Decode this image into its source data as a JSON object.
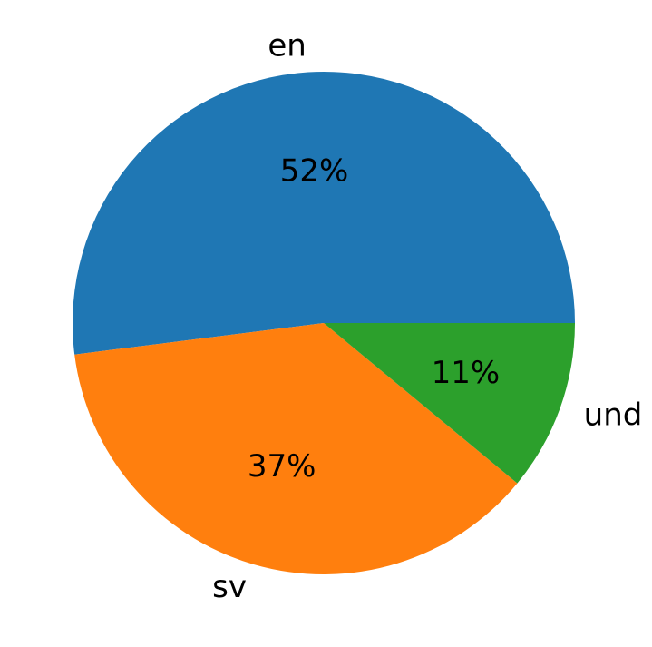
{
  "chart_data": {
    "type": "pie",
    "title": "",
    "categories": [
      "en",
      "sv",
      "und"
    ],
    "values": [
      52,
      37,
      11
    ],
    "value_labels": [
      "52%",
      "37%",
      "11%"
    ],
    "colors": [
      "#1f77b4",
      "#ff7f0e",
      "#2ca02c"
    ],
    "start_angle_deg": 0,
    "direction": "counterclockwise",
    "legend": "none"
  }
}
